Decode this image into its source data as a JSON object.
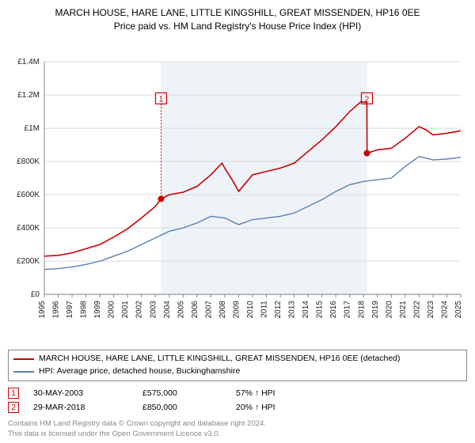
{
  "title": {
    "line1": "MARCH HOUSE, HARE LANE, LITTLE KINGSHILL, GREAT MISSENDEN, HP16 0EE",
    "line2": "Price paid vs. HM Land Registry's House Price Index (HPI)",
    "fontsize": 12
  },
  "chart": {
    "type": "line",
    "background_color": "#ffffff",
    "plot_background": "#ffffff",
    "grid_color": "#d9d9d9",
    "axis_color": "#888888",
    "shaded_band": {
      "x_start": 2003.41,
      "x_end": 2018.24,
      "fill": "#eef3f8"
    },
    "x": {
      "min": 1995,
      "max": 2025,
      "ticks": [
        1995,
        1996,
        1997,
        1998,
        1999,
        2000,
        2001,
        2002,
        2003,
        2004,
        2005,
        2006,
        2007,
        2008,
        2009,
        2010,
        2011,
        2012,
        2013,
        2014,
        2015,
        2016,
        2017,
        2018,
        2019,
        2020,
        2021,
        2022,
        2023,
        2024,
        2025
      ],
      "label_fontsize": 10,
      "label_rotation": -90
    },
    "y": {
      "min": 0,
      "max": 1400000,
      "ticks": [
        0,
        200000,
        400000,
        600000,
        800000,
        1000000,
        1200000,
        1400000
      ],
      "tick_labels": [
        "£0",
        "£200K",
        "£400K",
        "£600K",
        "£800K",
        "£1M",
        "£1.2M",
        "£1.4M"
      ],
      "label_fontsize": 10
    },
    "series": [
      {
        "id": "property",
        "label": "MARCH HOUSE, HARE LANE, LITTLE KINGSHILL, GREAT MISSENDEN, HP16 0EE (detached)",
        "color": "#cc0000",
        "line_width": 1.6,
        "points": [
          [
            1995,
            230000
          ],
          [
            1996,
            235000
          ],
          [
            1997,
            250000
          ],
          [
            1998,
            275000
          ],
          [
            1999,
            300000
          ],
          [
            2000,
            345000
          ],
          [
            2001,
            395000
          ],
          [
            2002,
            460000
          ],
          [
            2003,
            530000
          ],
          [
            2003.41,
            575000
          ],
          [
            2004,
            600000
          ],
          [
            2005,
            615000
          ],
          [
            2006,
            650000
          ],
          [
            2007,
            720000
          ],
          [
            2007.8,
            790000
          ],
          [
            2008,
            760000
          ],
          [
            2008.6,
            680000
          ],
          [
            2009,
            620000
          ],
          [
            2009.5,
            670000
          ],
          [
            2010,
            720000
          ],
          [
            2011,
            740000
          ],
          [
            2012,
            760000
          ],
          [
            2013,
            790000
          ],
          [
            2014,
            860000
          ],
          [
            2015,
            930000
          ],
          [
            2016,
            1010000
          ],
          [
            2017,
            1100000
          ],
          [
            2017.8,
            1160000
          ],
          [
            2018.24,
            1155000
          ],
          [
            2018.25,
            850000
          ],
          [
            2019,
            870000
          ],
          [
            2020,
            880000
          ],
          [
            2021,
            940000
          ],
          [
            2022,
            1010000
          ],
          [
            2022.5,
            990000
          ],
          [
            2023,
            960000
          ],
          [
            2024,
            970000
          ],
          [
            2025,
            985000
          ]
        ]
      },
      {
        "id": "hpi",
        "label": "HPI: Average price, detached house, Buckinghamshire",
        "color": "#5b7fb3",
        "line_width": 1.4,
        "points": [
          [
            1995,
            150000
          ],
          [
            1996,
            155000
          ],
          [
            1997,
            165000
          ],
          [
            1998,
            180000
          ],
          [
            1999,
            200000
          ],
          [
            2000,
            230000
          ],
          [
            2001,
            260000
          ],
          [
            2002,
            300000
          ],
          [
            2003,
            340000
          ],
          [
            2004,
            380000
          ],
          [
            2005,
            400000
          ],
          [
            2006,
            430000
          ],
          [
            2007,
            470000
          ],
          [
            2008,
            460000
          ],
          [
            2009,
            420000
          ],
          [
            2010,
            450000
          ],
          [
            2011,
            460000
          ],
          [
            2012,
            470000
          ],
          [
            2013,
            490000
          ],
          [
            2014,
            530000
          ],
          [
            2015,
            570000
          ],
          [
            2016,
            620000
          ],
          [
            2017,
            660000
          ],
          [
            2018,
            680000
          ],
          [
            2019,
            690000
          ],
          [
            2020,
            700000
          ],
          [
            2021,
            770000
          ],
          [
            2022,
            830000
          ],
          [
            2023,
            810000
          ],
          [
            2024,
            815000
          ],
          [
            2025,
            825000
          ]
        ]
      }
    ],
    "markers": [
      {
        "n": 1,
        "x": 2003.41,
        "y": 575000,
        "box_y": 1180000
      },
      {
        "n": 2,
        "x": 2018.24,
        "y": 850000,
        "box_y": 1180000
      }
    ]
  },
  "legend": {
    "rows": [
      {
        "color": "#cc0000",
        "label": "MARCH HOUSE, HARE LANE, LITTLE KINGSHILL, GREAT MISSENDEN, HP16 0EE (detached)"
      },
      {
        "color": "#5b7fb3",
        "label": "HPI: Average price, detached house, Buckinghamshire"
      }
    ]
  },
  "transactions": [
    {
      "n": "1",
      "date": "30-MAY-2003",
      "price": "£575,000",
      "delta": "57% ↑ HPI"
    },
    {
      "n": "2",
      "date": "29-MAR-2018",
      "price": "£850,000",
      "delta": "20% ↑ HPI"
    }
  ],
  "footer": {
    "line1": "Contains HM Land Registry data © Crown copyright and database right 2024.",
    "line2": "This data is licensed under the Open Government Licence v3.0."
  }
}
